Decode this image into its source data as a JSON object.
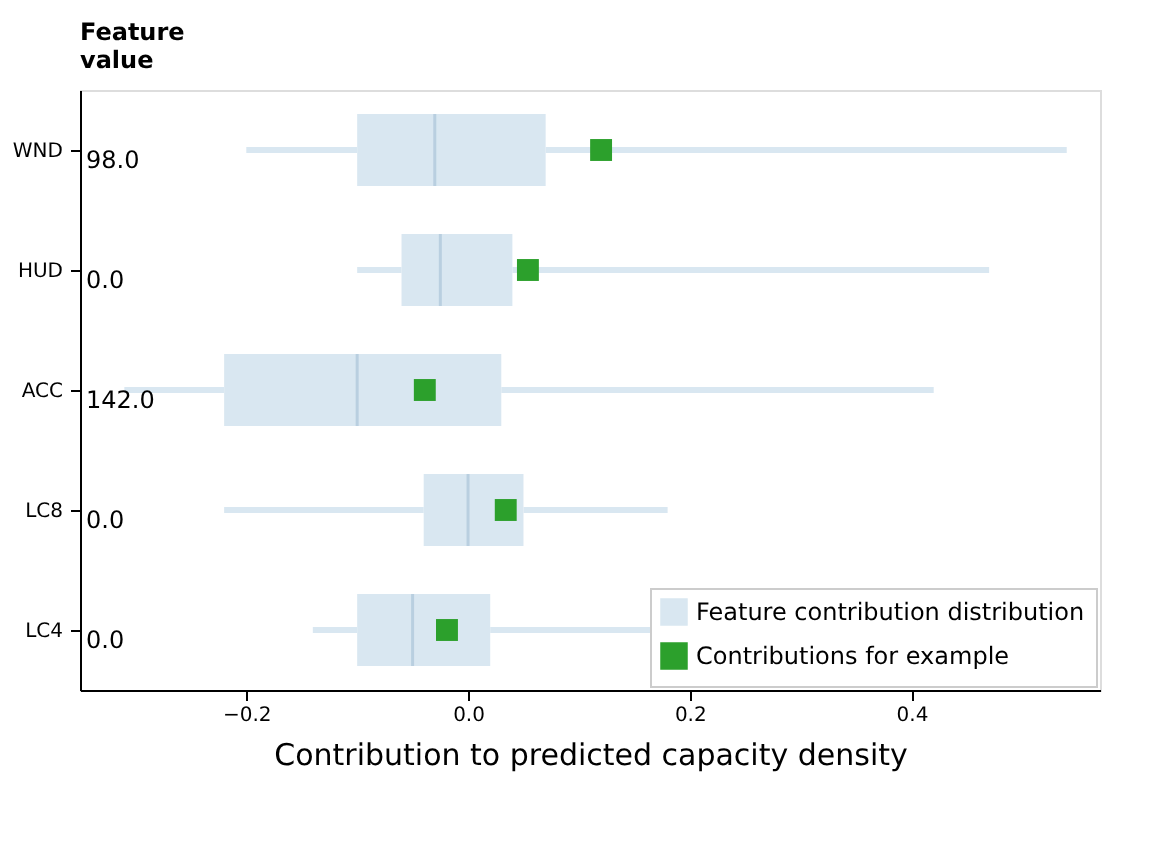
{
  "chart_data": {
    "type": "box",
    "orientation": "horizontal",
    "ylabel": "Feature value",
    "xlabel": "Contribution to predicted capacity density",
    "categories": [
      "WND",
      "HUD",
      "ACC",
      "LC8",
      "LC4"
    ],
    "xlim": [
      -0.35,
      0.57
    ],
    "xticks": [
      {
        "value": -0.2,
        "label": "−0.2"
      },
      {
        "value": 0.0,
        "label": "0.0"
      },
      {
        "value": 0.2,
        "label": "0.2"
      },
      {
        "value": 0.4,
        "label": "0.4"
      }
    ],
    "legend": "bottom right",
    "grid": false,
    "series": [
      {
        "name": "Feature contribution distribution",
        "color": "#d9e7f1",
        "boxes": [
          {
            "low": -0.2,
            "q1": -0.1,
            "median": -0.03,
            "q3": 0.07,
            "high": 0.54
          },
          {
            "low": -0.1,
            "q1": -0.06,
            "median": -0.025,
            "q3": 0.04,
            "high": 0.47
          },
          {
            "low": -0.31,
            "q1": -0.22,
            "median": -0.1,
            "q3": 0.03,
            "high": 0.42
          },
          {
            "low": -0.22,
            "q1": -0.04,
            "median": 0.0,
            "q3": 0.05,
            "high": 0.18
          },
          {
            "low": -0.14,
            "q1": -0.1,
            "median": -0.05,
            "q3": 0.02,
            "high": 0.19
          }
        ]
      },
      {
        "name": "Contributions for example",
        "type": "scatter",
        "marker": "square",
        "color": "#2ca02c",
        "values": [
          0.12,
          0.054,
          -0.039,
          0.034,
          -0.019
        ]
      }
    ],
    "annotations": [
      "98.0",
      "0.0",
      "142.0",
      "0.0",
      "0.0"
    ]
  }
}
